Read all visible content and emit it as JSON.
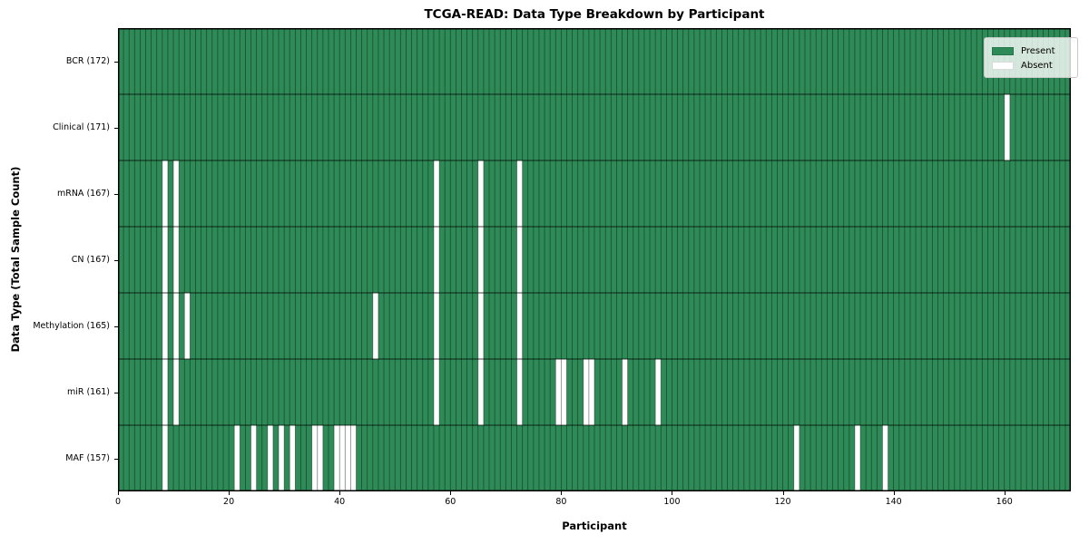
{
  "title": "TCGA-READ: Data Type Breakdown by Participant",
  "axes": {
    "xlabel": "Participant",
    "ylabel": "Data Type (Total Sample Count)",
    "xticks": [
      0,
      20,
      40,
      60,
      80,
      100,
      120,
      140,
      160
    ]
  },
  "legend": {
    "items": [
      {
        "label": "Present",
        "color": "#2e8b57"
      },
      {
        "label": "Absent",
        "color": "#ffffff"
      }
    ]
  },
  "colors": {
    "present": "#2e8b57",
    "absent": "#ffffff",
    "gridline": "rgba(0,0,0,0.45)",
    "row_divider": "rgba(0,0,0,0.75)",
    "border": "#000000"
  },
  "chart_data": {
    "type": "heatmap",
    "title": "TCGA-READ: Data Type Breakdown by Participant",
    "xlabel": "Participant",
    "ylabel": "Data Type (Total Sample Count)",
    "x_participants": 172,
    "xlim": [
      0,
      172
    ],
    "xticks": [
      0,
      20,
      40,
      60,
      80,
      100,
      120,
      140,
      160
    ],
    "grid": true,
    "legend_position": "upper right",
    "cell_values": "present=1 (green), absent=0 (white)",
    "rows": [
      {
        "data_type": "BCR",
        "label": "BCR (172)",
        "count": 172,
        "absent_participants": []
      },
      {
        "data_type": "Clinical",
        "label": "Clinical (171)",
        "count": 171,
        "absent_participants": [
          160
        ]
      },
      {
        "data_type": "mRNA",
        "label": "mRNA (167)",
        "count": 167,
        "absent_participants": [
          8,
          10,
          57,
          65,
          72
        ]
      },
      {
        "data_type": "CN",
        "label": "CN (167)",
        "count": 167,
        "absent_participants": [
          8,
          10,
          57,
          65,
          72
        ]
      },
      {
        "data_type": "Methylation",
        "label": "Methylation (165)",
        "count": 165,
        "absent_participants": [
          8,
          10,
          12,
          46,
          57,
          65,
          72
        ]
      },
      {
        "data_type": "miR",
        "label": "miR (161)",
        "count": 161,
        "absent_participants": [
          8,
          10,
          57,
          65,
          72,
          79,
          80,
          84,
          85,
          91,
          97
        ]
      },
      {
        "data_type": "MAF",
        "label": "MAF (157)",
        "count": 157,
        "absent_participants": [
          8,
          21,
          24,
          27,
          29,
          31,
          35,
          36,
          39,
          40,
          41,
          42,
          122,
          133,
          138
        ]
      }
    ]
  }
}
